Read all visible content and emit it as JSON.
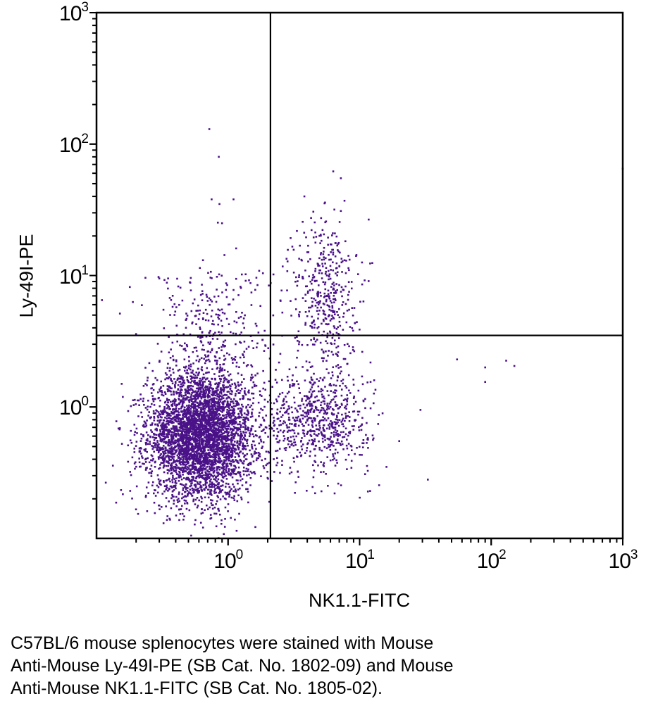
{
  "chart_data": {
    "type": "scatter",
    "xlabel": "NK1.1-FITC",
    "ylabel": "Ly-49I-PE",
    "x_scale": "log",
    "y_scale": "log",
    "xlim": [
      0.1,
      1000
    ],
    "ylim": [
      0.1,
      1000
    ],
    "x_ticks": [
      {
        "base": "10",
        "exp": "0"
      },
      {
        "base": "10",
        "exp": "1"
      },
      {
        "base": "10",
        "exp": "2"
      },
      {
        "base": "10",
        "exp": "3"
      }
    ],
    "x_tick_values": [
      1,
      10,
      100,
      1000
    ],
    "y_ticks": [
      {
        "base": "10",
        "exp": "0"
      },
      {
        "base": "10",
        "exp": "1"
      },
      {
        "base": "10",
        "exp": "2"
      },
      {
        "base": "10",
        "exp": "3"
      }
    ],
    "y_tick_values": [
      1,
      10,
      100,
      1000
    ],
    "grid": false,
    "quadrant_gates": {
      "x": 2.1,
      "y": 3.5
    },
    "point_color": "#4a1288",
    "populations": [
      {
        "center": [
          0.62,
          0.6
        ],
        "spread_decades": [
          0.2,
          0.24
        ],
        "count": 4200
      },
      {
        "center": [
          4.8,
          0.8
        ],
        "spread_decades": [
          0.2,
          0.2
        ],
        "count": 700
      },
      {
        "center": [
          5.5,
          7.5
        ],
        "spread_decades": [
          0.12,
          0.3
        ],
        "count": 420
      },
      {
        "center": [
          0.75,
          3.8
        ],
        "spread_decades": [
          0.25,
          0.28
        ],
        "count": 320
      }
    ],
    "outliers": [
      [
        0.72,
        130
      ],
      [
        0.85,
        80
      ],
      [
        0.75,
        38
      ],
      [
        1.1,
        38
      ],
      [
        0.86,
        35
      ],
      [
        0.9,
        25
      ],
      [
        6.3,
        62
      ],
      [
        7.2,
        55
      ],
      [
        55,
        2.3
      ],
      [
        90,
        2.0
      ],
      [
        90,
        1.55
      ],
      [
        130,
        2.25
      ],
      [
        150,
        2.05
      ],
      [
        33,
        0.28
      ],
      [
        29,
        0.95
      ],
      [
        20,
        0.55
      ],
      [
        16,
        0.35
      ],
      [
        0.11,
        6.5
      ],
      [
        1000,
        65
      ],
      [
        0.3,
        9.5
      ],
      [
        0.35,
        9.5
      ]
    ]
  },
  "caption": [
    "C57BL/6 mouse splenocytes were stained with Mouse",
    "Anti-Mouse Ly-49I-PE (SB Cat. No. 1802-09) and Mouse",
    "Anti-Mouse NK1.1-FITC (SB Cat. No. 1805-02)."
  ]
}
